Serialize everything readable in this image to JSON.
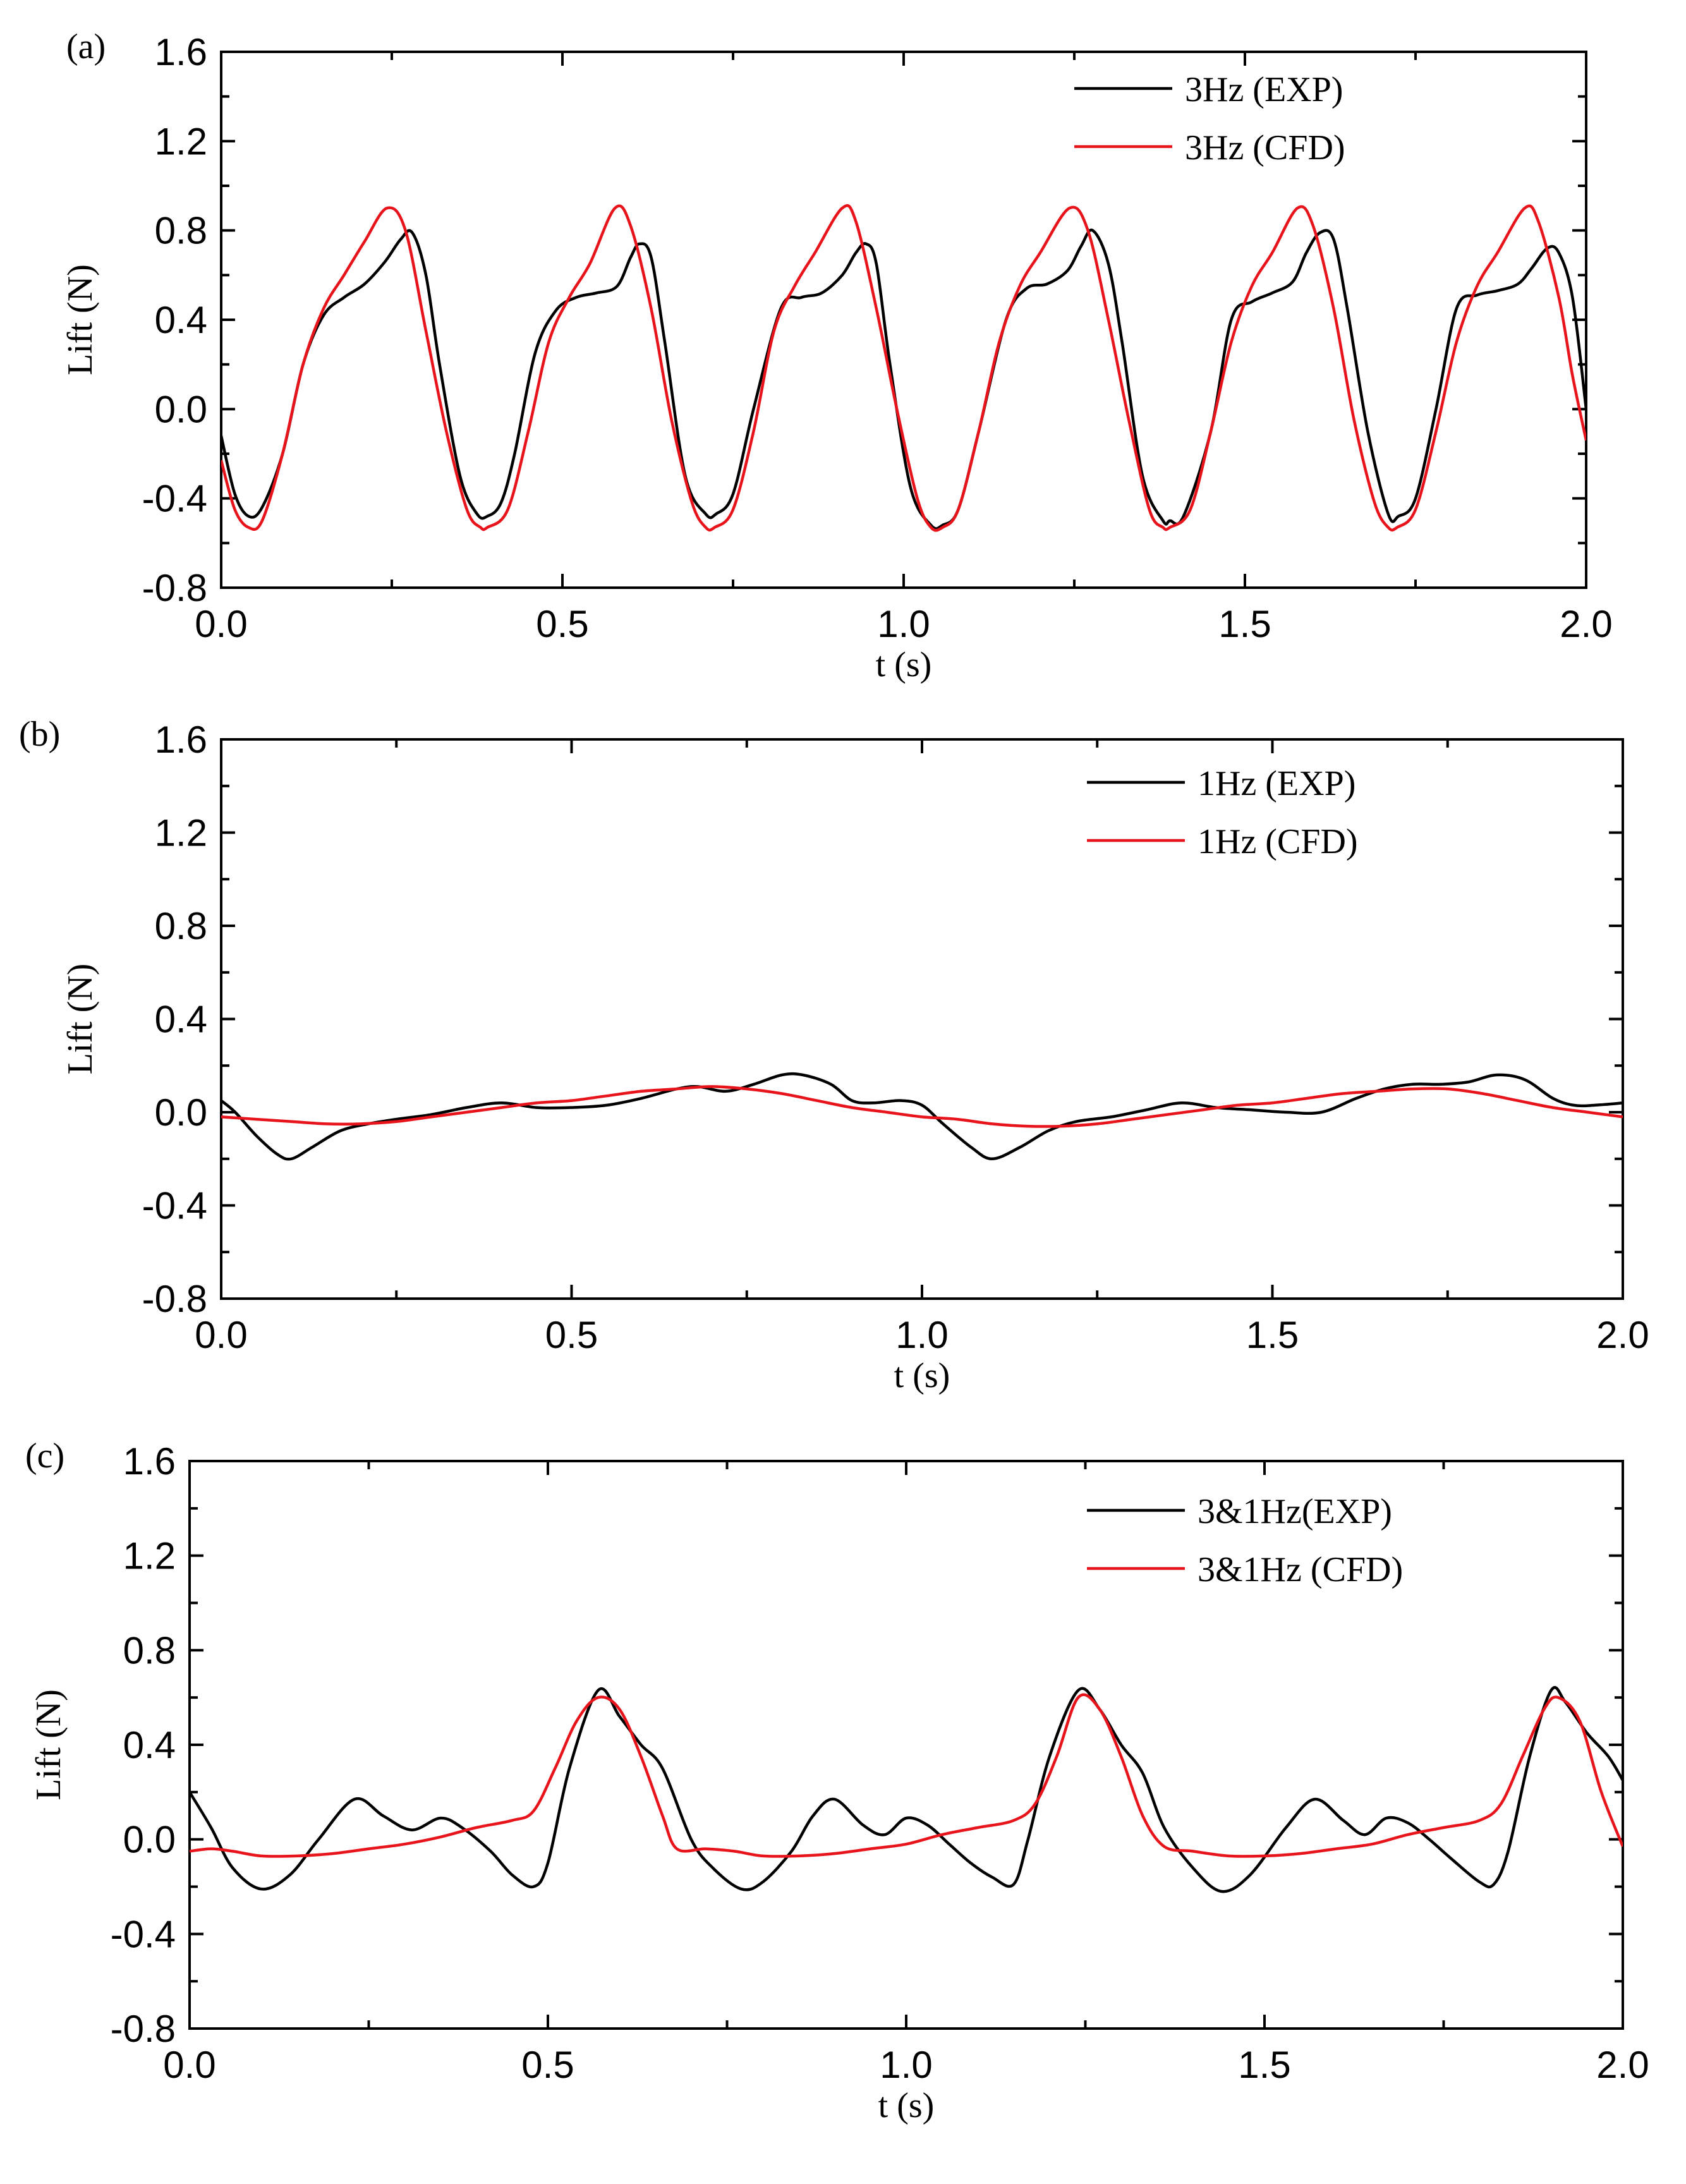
{
  "chart_data": [
    {
      "type": "line",
      "panel_label": "(a)",
      "xlabel": "t (s)",
      "ylabel": "Lift (N)",
      "xlim": [
        0,
        2
      ],
      "ylim": [
        -0.8,
        1.6
      ],
      "x_ticks": [
        "0.0",
        "0.5",
        "1.0",
        "1.5",
        "2.0"
      ],
      "y_ticks": [
        "-0.8",
        "-0.4",
        "0.0",
        "0.4",
        "0.8",
        "1.2",
        "1.6"
      ],
      "legend_position": "top-right",
      "series": [
        {
          "name": "3Hz (EXP)",
          "color": "#000000",
          "x": [
            0,
            0.02,
            0.04,
            0.06,
            0.09,
            0.12,
            0.15,
            0.18,
            0.21,
            0.24,
            0.263,
            0.28,
            0.3,
            0.32,
            0.35,
            0.375,
            0.39,
            0.41,
            0.43,
            0.46,
            0.49,
            0.52,
            0.55,
            0.58,
            0.6,
            0.613,
            0.63,
            0.65,
            0.68,
            0.71,
            0.725,
            0.75,
            0.78,
            0.82,
            0.85,
            0.88,
            0.91,
            0.93,
            0.945,
            0.96,
            0.98,
            1.01,
            1.04,
            1.057,
            1.08,
            1.11,
            1.15,
            1.18,
            1.21,
            1.24,
            1.26,
            1.277,
            1.3,
            1.32,
            1.35,
            1.38,
            1.39,
            1.41,
            1.45,
            1.48,
            1.51,
            1.54,
            1.57,
            1.59,
            1.61,
            1.63,
            1.65,
            1.68,
            1.71,
            1.725,
            1.75,
            1.78,
            1.81,
            1.84,
            1.87,
            1.9,
            1.92,
            1.943,
            1.96,
            1.98,
            2.0
          ],
          "y": [
            -0.12,
            -0.38,
            -0.48,
            -0.44,
            -0.2,
            0.2,
            0.42,
            0.5,
            0.56,
            0.66,
            0.76,
            0.79,
            0.6,
            0.2,
            -0.3,
            -0.47,
            -0.48,
            -0.42,
            -0.2,
            0.25,
            0.44,
            0.5,
            0.52,
            0.55,
            0.68,
            0.74,
            0.68,
            0.3,
            -0.3,
            -0.47,
            -0.47,
            -0.38,
            0.0,
            0.45,
            0.5,
            0.52,
            0.6,
            0.7,
            0.74,
            0.65,
            0.2,
            -0.35,
            -0.52,
            -0.52,
            -0.45,
            -0.1,
            0.4,
            0.54,
            0.56,
            0.62,
            0.73,
            0.8,
            0.65,
            0.3,
            -0.3,
            -0.5,
            -0.5,
            -0.48,
            -0.1,
            0.4,
            0.48,
            0.52,
            0.57,
            0.7,
            0.79,
            0.76,
            0.45,
            -0.1,
            -0.47,
            -0.48,
            -0.4,
            0.0,
            0.45,
            0.51,
            0.53,
            0.56,
            0.63,
            0.72,
            0.7,
            0.5,
            0.0
          ]
        },
        {
          "name": "3Hz (CFD)",
          "color": "#e8141b",
          "x": [
            0,
            0.02,
            0.04,
            0.06,
            0.09,
            0.12,
            0.15,
            0.18,
            0.21,
            0.243,
            0.27,
            0.3,
            0.33,
            0.36,
            0.38,
            0.39,
            0.42,
            0.45,
            0.48,
            0.51,
            0.54,
            0.577,
            0.6,
            0.63,
            0.66,
            0.69,
            0.71,
            0.723,
            0.75,
            0.78,
            0.81,
            0.84,
            0.87,
            0.91,
            0.93,
            0.96,
            0.99,
            1.02,
            1.04,
            1.057,
            1.08,
            1.11,
            1.14,
            1.17,
            1.2,
            1.243,
            1.27,
            1.3,
            1.33,
            1.36,
            1.38,
            1.39,
            1.42,
            1.45,
            1.48,
            1.51,
            1.54,
            1.577,
            1.6,
            1.63,
            1.66,
            1.69,
            1.71,
            1.723,
            1.75,
            1.78,
            1.81,
            1.84,
            1.87,
            1.91,
            1.93,
            1.96,
            1.98,
            2.0
          ],
          "y": [
            -0.23,
            -0.45,
            -0.53,
            -0.5,
            -0.2,
            0.2,
            0.45,
            0.6,
            0.75,
            0.9,
            0.8,
            0.35,
            -0.1,
            -0.45,
            -0.53,
            -0.53,
            -0.45,
            -0.1,
            0.3,
            0.5,
            0.65,
            0.9,
            0.82,
            0.45,
            -0.05,
            -0.42,
            -0.53,
            -0.53,
            -0.45,
            -0.1,
            0.35,
            0.55,
            0.7,
            0.9,
            0.84,
            0.45,
            0.0,
            -0.4,
            -0.53,
            -0.53,
            -0.45,
            -0.1,
            0.3,
            0.55,
            0.7,
            0.9,
            0.8,
            0.4,
            -0.05,
            -0.45,
            -0.53,
            -0.53,
            -0.45,
            -0.1,
            0.3,
            0.55,
            0.7,
            0.9,
            0.82,
            0.45,
            -0.05,
            -0.42,
            -0.53,
            -0.53,
            -0.45,
            -0.1,
            0.3,
            0.55,
            0.7,
            0.9,
            0.84,
            0.5,
            0.15,
            -0.14
          ]
        }
      ]
    },
    {
      "type": "line",
      "panel_label": "(b)",
      "xlabel": "t (s)",
      "ylabel": "Lift (N)",
      "xlim": [
        0,
        2
      ],
      "ylim": [
        -0.8,
        1.6
      ],
      "x_ticks": [
        "0.0",
        "0.5",
        "1.0",
        "1.5",
        "2.0"
      ],
      "y_ticks": [
        "-0.8",
        "-0.4",
        "0.0",
        "0.4",
        "0.8",
        "1.2",
        "1.6"
      ],
      "legend_position": "top-right",
      "series": [
        {
          "name": "1Hz (EXP)",
          "color": "#000000",
          "x": [
            0,
            0.02,
            0.05,
            0.08,
            0.1,
            0.13,
            0.17,
            0.21,
            0.25,
            0.3,
            0.35,
            0.4,
            0.45,
            0.5,
            0.55,
            0.6,
            0.65,
            0.68,
            0.72,
            0.76,
            0.8,
            0.83,
            0.87,
            0.9,
            0.93,
            0.97,
            1.0,
            1.03,
            1.07,
            1.1,
            1.14,
            1.18,
            1.22,
            1.27,
            1.32,
            1.37,
            1.42,
            1.47,
            1.52,
            1.57,
            1.62,
            1.66,
            1.7,
            1.74,
            1.78,
            1.82,
            1.86,
            1.9,
            1.93,
            1.96,
            2.0
          ],
          "y": [
            0.05,
            0.0,
            -0.1,
            -0.18,
            -0.2,
            -0.15,
            -0.08,
            -0.05,
            -0.03,
            -0.01,
            0.02,
            0.04,
            0.02,
            0.02,
            0.03,
            0.06,
            0.1,
            0.11,
            0.09,
            0.12,
            0.16,
            0.16,
            0.12,
            0.05,
            0.04,
            0.05,
            0.03,
            -0.05,
            -0.15,
            -0.2,
            -0.15,
            -0.08,
            -0.04,
            -0.02,
            0.01,
            0.04,
            0.02,
            0.01,
            0.0,
            0.0,
            0.06,
            0.1,
            0.12,
            0.12,
            0.13,
            0.16,
            0.14,
            0.06,
            0.03,
            0.03,
            0.04
          ]
        },
        {
          "name": "1Hz (CFD)",
          "color": "#e8141b",
          "x": [
            0,
            0.05,
            0.1,
            0.15,
            0.2,
            0.25,
            0.3,
            0.35,
            0.4,
            0.45,
            0.5,
            0.55,
            0.6,
            0.65,
            0.7,
            0.75,
            0.8,
            0.85,
            0.9,
            0.95,
            1.0,
            1.05,
            1.1,
            1.15,
            1.2,
            1.25,
            1.3,
            1.35,
            1.4,
            1.45,
            1.5,
            1.55,
            1.6,
            1.65,
            1.7,
            1.75,
            1.8,
            1.85,
            1.9,
            1.95,
            2.0
          ],
          "y": [
            -0.02,
            -0.03,
            -0.04,
            -0.05,
            -0.05,
            -0.04,
            -0.02,
            0.0,
            0.02,
            0.04,
            0.05,
            0.07,
            0.09,
            0.1,
            0.11,
            0.1,
            0.08,
            0.05,
            0.02,
            0.0,
            -0.02,
            -0.03,
            -0.05,
            -0.06,
            -0.06,
            -0.05,
            -0.03,
            -0.01,
            0.01,
            0.03,
            0.04,
            0.06,
            0.08,
            0.09,
            0.1,
            0.1,
            0.08,
            0.05,
            0.02,
            0.0,
            -0.02
          ]
        }
      ]
    },
    {
      "type": "line",
      "panel_label": "(c)",
      "xlabel": "t (s)",
      "ylabel": "Lift (N)",
      "xlim": [
        0,
        2
      ],
      "ylim": [
        -0.8,
        1.6
      ],
      "x_ticks": [
        "0.0",
        "0.5",
        "1.0",
        "1.5",
        "2.0"
      ],
      "y_ticks": [
        "-0.8",
        "-0.4",
        "0.0",
        "0.4",
        "0.8",
        "1.2",
        "1.6"
      ],
      "legend_position": "top-right",
      "series": [
        {
          "name": "3&1Hz(EXP)",
          "color": "#000000",
          "x": [
            0,
            0.03,
            0.06,
            0.1,
            0.14,
            0.18,
            0.23,
            0.27,
            0.31,
            0.35,
            0.38,
            0.42,
            0.45,
            0.48,
            0.5,
            0.53,
            0.57,
            0.6,
            0.63,
            0.66,
            0.7,
            0.73,
            0.77,
            0.8,
            0.84,
            0.87,
            0.9,
            0.94,
            0.97,
            1.0,
            1.03,
            1.06,
            1.09,
            1.12,
            1.15,
            1.17,
            1.2,
            1.24,
            1.27,
            1.3,
            1.33,
            1.36,
            1.4,
            1.44,
            1.48,
            1.53,
            1.57,
            1.61,
            1.64,
            1.67,
            1.7,
            1.73,
            1.76,
            1.8,
            1.82,
            1.84,
            1.87,
            1.9,
            1.92,
            1.95,
            1.98,
            2.0
          ],
          "y": [
            0.2,
            0.05,
            -0.12,
            -0.21,
            -0.15,
            0.0,
            0.17,
            0.1,
            0.04,
            0.09,
            0.05,
            -0.05,
            -0.15,
            -0.2,
            -0.1,
            0.3,
            0.63,
            0.52,
            0.4,
            0.3,
            0.0,
            -0.12,
            -0.21,
            -0.18,
            -0.05,
            0.1,
            0.17,
            0.06,
            0.02,
            0.09,
            0.06,
            -0.02,
            -0.1,
            -0.16,
            -0.19,
            0.0,
            0.35,
            0.63,
            0.55,
            0.4,
            0.28,
            0.05,
            -0.12,
            -0.22,
            -0.15,
            0.05,
            0.17,
            0.08,
            0.02,
            0.09,
            0.07,
            0.0,
            -0.08,
            -0.18,
            -0.19,
            -0.05,
            0.35,
            0.63,
            0.58,
            0.45,
            0.35,
            0.25
          ]
        },
        {
          "name": "3&1Hz (CFD)",
          "color": "#e8141b",
          "x": [
            0,
            0.03,
            0.06,
            0.1,
            0.15,
            0.2,
            0.25,
            0.3,
            0.35,
            0.4,
            0.45,
            0.48,
            0.51,
            0.54,
            0.57,
            0.6,
            0.63,
            0.66,
            0.68,
            0.72,
            0.76,
            0.8,
            0.85,
            0.9,
            0.95,
            1.0,
            1.05,
            1.1,
            1.15,
            1.18,
            1.21,
            1.24,
            1.27,
            1.3,
            1.33,
            1.36,
            1.4,
            1.45,
            1.5,
            1.55,
            1.6,
            1.65,
            1.7,
            1.75,
            1.8,
            1.83,
            1.86,
            1.89,
            1.91,
            1.94,
            1.97,
            2.0
          ],
          "y": [
            -0.05,
            -0.04,
            -0.05,
            -0.07,
            -0.07,
            -0.06,
            -0.04,
            -0.02,
            0.01,
            0.05,
            0.08,
            0.12,
            0.3,
            0.5,
            0.6,
            0.55,
            0.35,
            0.1,
            -0.04,
            -0.04,
            -0.05,
            -0.07,
            -0.07,
            -0.06,
            -0.04,
            -0.02,
            0.02,
            0.05,
            0.08,
            0.15,
            0.35,
            0.6,
            0.55,
            0.35,
            0.1,
            -0.03,
            -0.05,
            -0.07,
            -0.07,
            -0.06,
            -0.04,
            -0.02,
            0.02,
            0.05,
            0.08,
            0.15,
            0.35,
            0.55,
            0.6,
            0.5,
            0.2,
            -0.03
          ]
        }
      ]
    }
  ]
}
